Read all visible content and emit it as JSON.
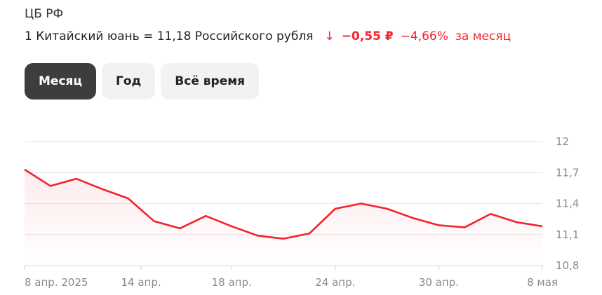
{
  "source": "ЦБ РФ",
  "rate": {
    "text": "1 Китайский юань = 11,18 Российского рубля",
    "arrow_icon": "arrow-down-icon",
    "change_abs": "−0,55 ₽",
    "change_pct": "−4,66%",
    "period": "за месяц",
    "accent": "#f5222d"
  },
  "periods": [
    {
      "label": "Месяц",
      "active": true
    },
    {
      "label": "Год",
      "active": false
    },
    {
      "label": "Всё время",
      "active": false
    }
  ],
  "chart_data": {
    "type": "area",
    "x": [
      "2025-04-08",
      "2025-04-09",
      "2025-04-10",
      "2025-04-11",
      "2025-04-12",
      "2025-04-15",
      "2025-04-16",
      "2025-04-17",
      "2025-04-18",
      "2025-04-19",
      "2025-04-22",
      "2025-04-23",
      "2025-04-24",
      "2025-04-25",
      "2025-04-26",
      "2025-04-29",
      "2025-04-30",
      "2025-05-01",
      "2025-05-06",
      "2025-05-07",
      "2025-05-08"
    ],
    "series": [
      {
        "values": [
          11.73,
          11.57,
          11.64,
          11.54,
          11.45,
          11.23,
          11.16,
          11.28,
          11.18,
          11.09,
          11.06,
          11.11,
          11.35,
          11.4,
          11.35,
          11.26,
          11.19,
          11.17,
          11.3,
          11.22,
          11.18
        ]
      }
    ],
    "ylim": [
      10.8,
      12
    ],
    "y_ticks": [
      {
        "value": 12,
        "label": "12"
      },
      {
        "value": 11.7,
        "label": "11,7"
      },
      {
        "value": 11.4,
        "label": "11,4"
      },
      {
        "value": 11.1,
        "label": "11,1"
      },
      {
        "value": 10.8,
        "label": "10,8"
      }
    ],
    "x_ticks": [
      {
        "date": "2025-04-08",
        "label": "8 апр. 2025"
      },
      {
        "date": "2025-04-14",
        "label": "14 апр."
      },
      {
        "date": "2025-04-18",
        "label": "18 апр."
      },
      {
        "date": "2025-04-24",
        "label": "24 апр."
      },
      {
        "date": "2025-04-30",
        "label": "30 апр."
      },
      {
        "date": "2025-05-08",
        "label": "8 мая"
      }
    ],
    "line_color": "#f5222d",
    "grid": true
  }
}
